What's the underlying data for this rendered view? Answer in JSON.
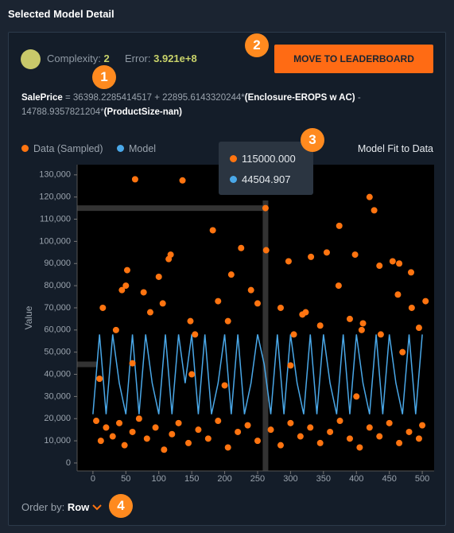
{
  "header": {
    "title": "Selected Model Detail"
  },
  "model": {
    "complexity_label": "Complexity:",
    "complexity": "2",
    "error_label": "Error:",
    "error": "3.921e+8"
  },
  "button": {
    "label": "MOVE TO LEADERBOARD"
  },
  "badges": [
    "1",
    "2",
    "3",
    "4"
  ],
  "formula": {
    "line1": [
      "SalePrice",
      " = 36398.2285414517 + 22895.6143320244*",
      "(Enclosure-EROPS w AC)",
      " -"
    ],
    "line2": [
      "14788.9357821204*",
      "(ProductSize-nan)"
    ]
  },
  "order": {
    "label": "Order by:",
    "value": "Row"
  },
  "chart_data": {
    "type": "scatter",
    "title": "Model Fit to Data",
    "ylabel": "Value",
    "xlim": [
      -24,
      518
    ],
    "ylim": [
      -3600,
      134600
    ],
    "xticks": [
      0,
      50,
      100,
      150,
      200,
      250,
      300,
      350,
      400,
      450,
      500
    ],
    "yticks": [
      0,
      {
        "value": 10000,
        "label": "10,000"
      },
      {
        "value": 20000,
        "label": "20,000"
      },
      {
        "value": 30000,
        "label": "30,000"
      },
      {
        "value": 40000,
        "label": "40,000"
      },
      {
        "value": 50000,
        "label": "50,000"
      },
      {
        "value": 60000,
        "label": "60,000"
      },
      {
        "value": 70000,
        "label": "70,000"
      },
      {
        "value": 80000,
        "label": "80,000"
      },
      {
        "value": 90000,
        "label": "90,000"
      },
      {
        "value": 100000,
        "label": "100,000"
      },
      {
        "value": 110000,
        "label": "110,000"
      },
      {
        "value": 120000,
        "label": "120,000"
      },
      {
        "value": 130000,
        "label": "130,000"
      }
    ],
    "series": [
      {
        "name": "Data (Sampled)",
        "color": "#ff7410",
        "kind": "points",
        "x": [
          64,
          136,
          262,
          420,
          427,
          182,
          374,
          331,
          355,
          398,
          263,
          225,
          297,
          118,
          115,
          52,
          100,
          435,
          455,
          465,
          483,
          373,
          210,
          44,
          50,
          77,
          240,
          190,
          318,
          250,
          87,
          106,
          285,
          323,
          463,
          484,
          505,
          155,
          35,
          148,
          305,
          408,
          410,
          437,
          15,
          205,
          390,
          345,
          495,
          5,
          12,
          20,
          30,
          40,
          48,
          60,
          70,
          82,
          95,
          108,
          120,
          130,
          145,
          160,
          175,
          190,
          205,
          220,
          235,
          250,
          270,
          285,
          300,
          315,
          330,
          345,
          360,
          375,
          390,
          405,
          420,
          435,
          450,
          465,
          480,
          495,
          500,
          10,
          60,
          150,
          200,
          300,
          400,
          470
        ],
        "values": [
          128000,
          127500,
          115000,
          120000,
          114000,
          105000,
          107000,
          93000,
          95000,
          94000,
          96000,
          97000,
          91000,
          94000,
          92000,
          87000,
          84000,
          89000,
          91000,
          90000,
          86000,
          80000,
          85000,
          78000,
          80000,
          77000,
          78000,
          73000,
          67000,
          72000,
          68000,
          72000,
          70000,
          68000,
          76000,
          70000,
          73000,
          58000,
          60000,
          64000,
          58000,
          60000,
          63000,
          58000,
          70000,
          64000,
          65000,
          62000,
          61000,
          19000,
          10000,
          16000,
          12000,
          18000,
          8000,
          14000,
          20000,
          11000,
          16000,
          6000,
          13000,
          18000,
          9000,
          15000,
          11000,
          19000,
          7000,
          14000,
          17000,
          10000,
          15000,
          8000,
          18000,
          12000,
          16000,
          9000,
          14000,
          19000,
          11000,
          7000,
          16000,
          12000,
          18000,
          9000,
          14000,
          11000,
          17000,
          38000,
          45000,
          40000,
          35000,
          44000,
          30000,
          50000
        ]
      },
      {
        "name": "Model",
        "color": "#4aa8e8",
        "kind": "line",
        "x": [
          0,
          10,
          20,
          30,
          40,
          50,
          60,
          70,
          80,
          90,
          100,
          110,
          120,
          130,
          140,
          150,
          160,
          170,
          180,
          190,
          200,
          210,
          220,
          230,
          240,
          250,
          260,
          270,
          280,
          290,
          300,
          310,
          320,
          330,
          340,
          350,
          360,
          370,
          380,
          390,
          400,
          410,
          420,
          430,
          440,
          450,
          460,
          470,
          480,
          490,
          500
        ],
        "values": [
          22000,
          58000,
          22000,
          58000,
          36000,
          22000,
          58000,
          22000,
          58000,
          36000,
          22000,
          58000,
          22000,
          58000,
          36000,
          58000,
          22000,
          58000,
          22000,
          36000,
          58000,
          22000,
          58000,
          22000,
          36000,
          58000,
          44504.907,
          22000,
          58000,
          22000,
          58000,
          36000,
          22000,
          58000,
          22000,
          58000,
          36000,
          22000,
          58000,
          22000,
          58000,
          36000,
          22000,
          58000,
          22000,
          58000,
          36000,
          22000,
          58000,
          22000,
          58000
        ]
      }
    ],
    "tooltip": {
      "x": 262,
      "values": [
        115000,
        44504.907
      ],
      "value_labels": [
        "115000.000",
        "44504.907"
      ]
    }
  }
}
